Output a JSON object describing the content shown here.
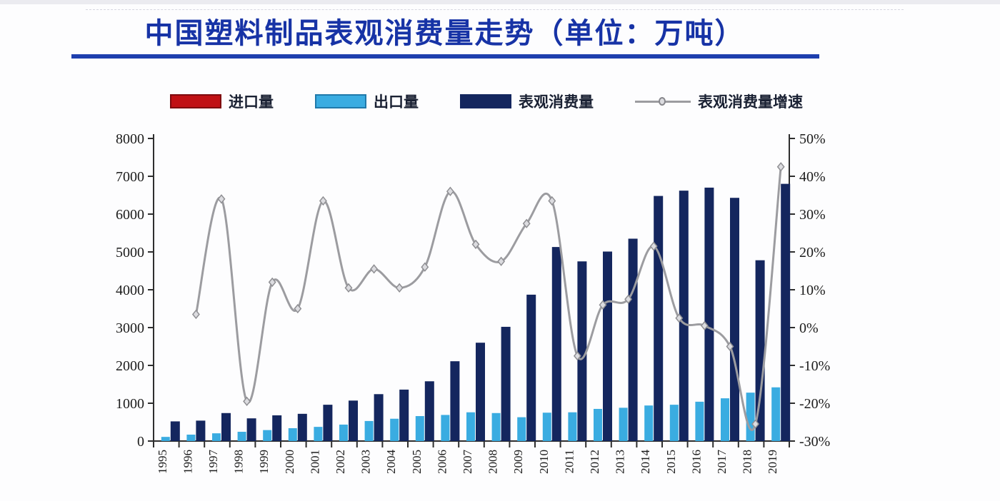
{
  "page": {
    "background": "#fdfdfe",
    "top_strip_color": "#ebebf0",
    "divider_color": "#d6d6e0"
  },
  "title": {
    "text": "中国塑料制品表观消费量走势（单位：万吨）",
    "color": "#1733a6",
    "underline_color": "#1e3fae"
  },
  "legend": {
    "text_color": "#1a2133",
    "items": [
      {
        "key": "import",
        "label": "进口量",
        "swatch": "bar",
        "color": "#c01115",
        "border_color": "#7e0a0e"
      },
      {
        "key": "export",
        "label": "出口量",
        "swatch": "bar",
        "color": "#3aace1",
        "border_color": "#2079aa"
      },
      {
        "key": "consumption",
        "label": "表观消费量",
        "swatch": "bar",
        "color": "#14265e",
        "border_color": "#14265e"
      },
      {
        "key": "growth",
        "label": "表观消费量增速",
        "swatch": "line",
        "color": "#9c9ca0",
        "marker_fill": "#dcdce0"
      }
    ]
  },
  "chart_data": {
    "type": "bar+line",
    "title": "中国塑料制品表观消费量走势（单位：万吨）",
    "xlabel": "",
    "ylabel_left": "万吨",
    "ylabel_right": "%",
    "grid": false,
    "legend_position": "top",
    "categories": [
      "1995",
      "1996",
      "1997",
      "1998",
      "1999",
      "2000",
      "2001",
      "2002",
      "2003",
      "2004",
      "2005",
      "2006",
      "2007",
      "2008",
      "2009",
      "2010",
      "2011",
      "2012",
      "2013",
      "2014",
      "2015",
      "2016",
      "2017",
      "2018",
      "2019"
    ],
    "left_axis": {
      "min": 0,
      "max": 8000,
      "ticks": [
        "0",
        "1000",
        "2000",
        "3000",
        "4000",
        "5000",
        "6000",
        "7000",
        "8000"
      ]
    },
    "right_axis": {
      "min": -30,
      "max": 50,
      "ticks": [
        "-30%",
        "-20%",
        "-10%",
        "0%",
        "10%",
        "20%",
        "30%",
        "40%",
        "50%"
      ]
    },
    "axis_color": "#2e2e2e",
    "tick_text_color": "#1c1c1c",
    "series": [
      {
        "name": "进口量",
        "key": "import",
        "type": "bar",
        "axis": "left",
        "color": "#c01115",
        "values": [
          0,
          0,
          0,
          0,
          0,
          0,
          0,
          0,
          0,
          0,
          0,
          0,
          0,
          0,
          0,
          0,
          0,
          0,
          0,
          0,
          0,
          0,
          0,
          0,
          0
        ]
      },
      {
        "name": "出口量",
        "key": "export",
        "type": "bar",
        "axis": "left",
        "color": "#3aace1",
        "values": [
          110,
          170,
          205,
          245,
          290,
          340,
          375,
          435,
          530,
          590,
          660,
          690,
          760,
          740,
          630,
          750,
          760,
          850,
          880,
          940,
          960,
          1040,
          1130,
          1280,
          1420
        ]
      },
      {
        "name": "表观消费量",
        "key": "consumption",
        "type": "bar",
        "axis": "left",
        "color": "#14265e",
        "values": [
          520,
          540,
          740,
          600,
          680,
          720,
          960,
          1070,
          1240,
          1360,
          1580,
          2110,
          2600,
          3020,
          3870,
          5130,
          4750,
          5010,
          5350,
          6480,
          6620,
          6700,
          6430,
          4780,
          6800
        ]
      },
      {
        "name": "表观消费量增速",
        "key": "growth",
        "type": "line",
        "axis": "right",
        "color": "#9c9ca0",
        "marker": "diamond",
        "marker_fill": "#dcdce0",
        "marker_stroke": "#8f8f93",
        "values": [
          null,
          3.5,
          34,
          -19.5,
          12,
          5,
          33.5,
          10.5,
          15.5,
          10.5,
          16,
          36,
          22,
          17.5,
          27.5,
          33.5,
          -7.5,
          6,
          7.5,
          21.5,
          2.5,
          0.5,
          -5,
          -25.5,
          42.5
        ]
      }
    ]
  }
}
